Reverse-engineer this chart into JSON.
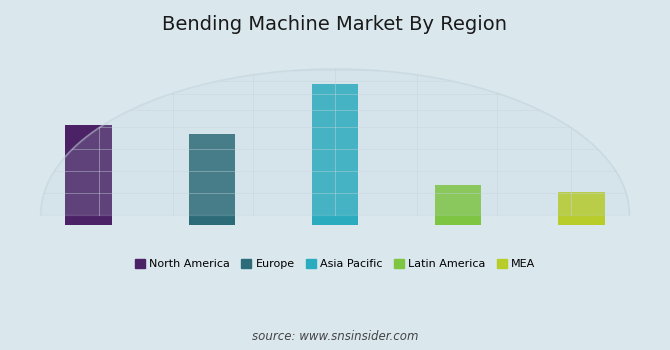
{
  "title": "Bending Machine Market By Region",
  "categories": [
    "North America",
    "Europe",
    "Asia Pacific",
    "Latin America",
    "MEA"
  ],
  "values": [
    5.5,
    5.0,
    7.8,
    2.2,
    1.8
  ],
  "bar_colors": [
    "#4b2265",
    "#2d6b78",
    "#2aacbe",
    "#7ec642",
    "#b8cc2a"
  ],
  "background_color": "#dae8ee",
  "legend_labels": [
    "North America",
    "Europe",
    "Asia Pacific",
    "Latin America",
    "MEA"
  ],
  "source_text": "source: www.snsinsider.com",
  "title_fontsize": 14,
  "ylim": [
    0,
    10
  ],
  "bar_width": 0.38,
  "globe_color": "#c2d4da",
  "globe_alpha": 0.55,
  "globe_linewidth": 0.9
}
